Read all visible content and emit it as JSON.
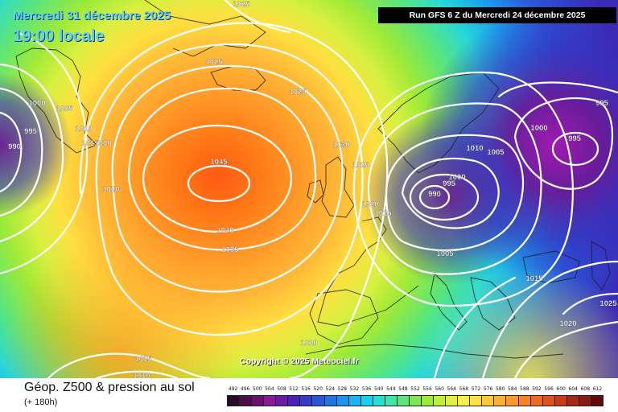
{
  "header": {
    "date_text": "Mercredi 31 décembre 2025",
    "time_text": "19:00 locale",
    "run_text": "Run GFS 6 Z du Mercredi 24 décembre 2025"
  },
  "copyright_text": "Copyright © 2025 Meteociel.fr",
  "footer": {
    "param_title": "Géop. Z500 & pression au sol",
    "lead_time": "(+ 180h)"
  },
  "scale": {
    "labels": [
      "492",
      "496",
      "500",
      "504",
      "508",
      "512",
      "516",
      "520",
      "524",
      "528",
      "532",
      "536",
      "540",
      "544",
      "548",
      "552",
      "556",
      "560",
      "564",
      "568",
      "572",
      "576",
      "580",
      "584",
      "588",
      "592",
      "596",
      "600",
      "604",
      "608",
      "612"
    ],
    "colors": [
      "#2a0c2a",
      "#4a0f4a",
      "#6a1070",
      "#8a1a96",
      "#6a1aa8",
      "#4a22b8",
      "#3a3ac8",
      "#2a55d8",
      "#1f74e6",
      "#1a94f0",
      "#19b4f5",
      "#1ad0f0",
      "#28e0d0",
      "#3ee6a8",
      "#5ae67a",
      "#7ee650",
      "#9eea38",
      "#c0f038",
      "#e0f040",
      "#f8f048",
      "#ffe040",
      "#ffc838",
      "#ffb030",
      "#ff9828",
      "#ff8020",
      "#f06a1e",
      "#e0501c",
      "#c83a1a",
      "#a82818",
      "#8a1a14",
      "#600a0a"
    ]
  },
  "pressure_labels": [
    {
      "text": "1025",
      "bind_group": "map"
    },
    {
      "text": "1000"
    },
    {
      "text": "1005"
    },
    {
      "text": "995"
    },
    {
      "text": "990"
    },
    {
      "text": "1010"
    },
    {
      "text": "1015"
    },
    {
      "text": "1020"
    },
    {
      "text": "1025"
    },
    {
      "text": "1025"
    },
    {
      "text": "1030"
    },
    {
      "text": "1025"
    },
    {
      "text": "1045"
    },
    {
      "text": "1040"
    },
    {
      "text": "1035"
    },
    {
      "text": "1020"
    },
    {
      "text": "1015"
    },
    {
      "text": "1010"
    },
    {
      "text": "995"
    },
    {
      "text": "1000"
    },
    {
      "text": "995"
    },
    {
      "text": "1010"
    },
    {
      "text": "1005"
    },
    {
      "text": "1000"
    },
    {
      "text": "995"
    },
    {
      "text": "990"
    },
    {
      "text": "1005"
    },
    {
      "text": "1015"
    },
    {
      "text": "1025"
    },
    {
      "text": "1020"
    },
    {
      "text": "1015"
    },
    {
      "text": "1010"
    },
    {
      "text": "1010"
    }
  ]
}
